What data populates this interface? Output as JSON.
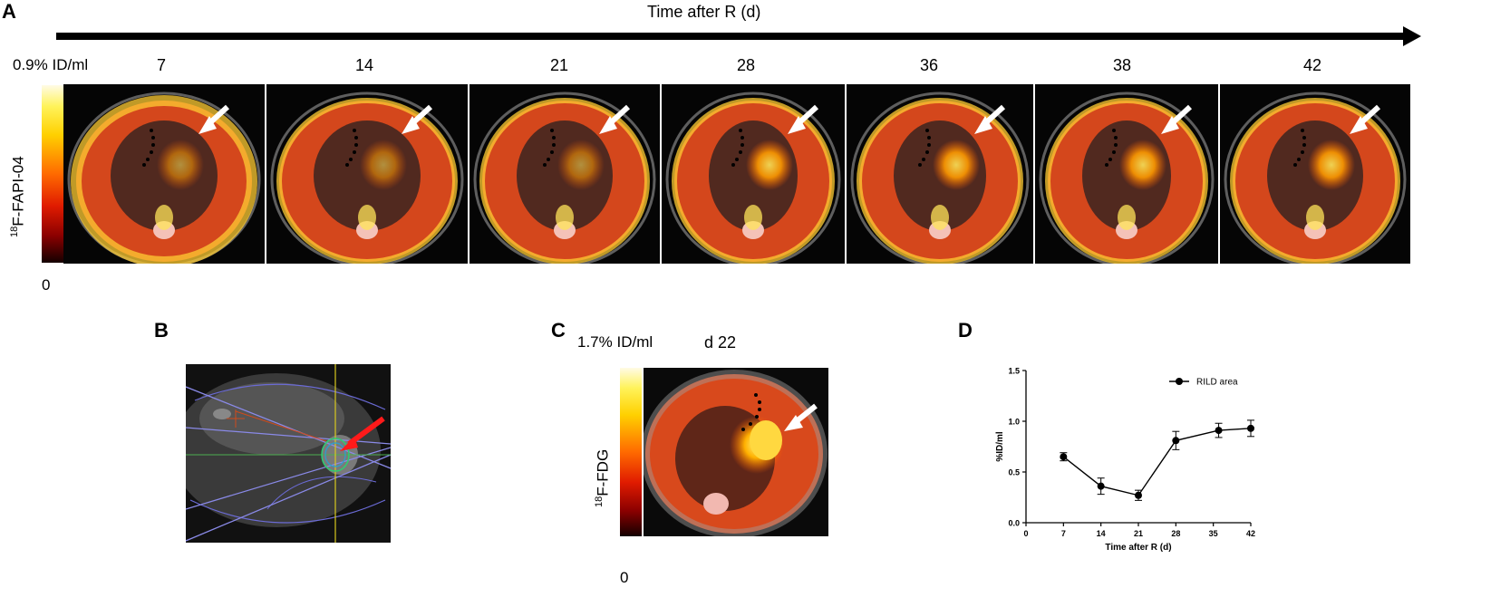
{
  "panels": {
    "a": "A",
    "b": "B",
    "c": "C",
    "d": "D"
  },
  "panel_a": {
    "time_axis_label": "Time after R (d)",
    "days": [
      "7",
      "14",
      "21",
      "28",
      "36",
      "38",
      "42"
    ],
    "scale_max": "0.9% ID/ml",
    "scale_min": "0",
    "tracer_label_sup": "18",
    "tracer_label": "F-FAPI-04"
  },
  "panel_c": {
    "day_label": "d 22",
    "scale_max": "1.7% ID/ml",
    "scale_min": "0",
    "tracer_label_sup": "18",
    "tracer_label": "F-FDG"
  },
  "colors": {
    "fused_hot": "#ff5a00",
    "fused_bright": "#ffe45a",
    "plan_lines": "#6b6bd6",
    "arrow_pointer": "#ff1a1a"
  },
  "chart_data": {
    "type": "line",
    "x": [
      7,
      14,
      21,
      28,
      36,
      42
    ],
    "series": [
      {
        "name": "RILD area",
        "values": [
          0.65,
          0.36,
          0.27,
          0.81,
          0.91,
          0.93
        ],
        "error": [
          0.04,
          0.08,
          0.05,
          0.09,
          0.07,
          0.08
        ]
      }
    ],
    "xlabel": "Time after R (d)",
    "ylabel": "%ID/ml",
    "xticks": [
      "0",
      "7",
      "14",
      "21",
      "28",
      "35",
      "42"
    ],
    "yticks": [
      "0.0",
      "0.5",
      "1.0",
      "1.5"
    ],
    "xlim": [
      0,
      42
    ],
    "ylim": [
      0,
      1.5
    ],
    "legend_placement": "top-right",
    "grid": false
  }
}
